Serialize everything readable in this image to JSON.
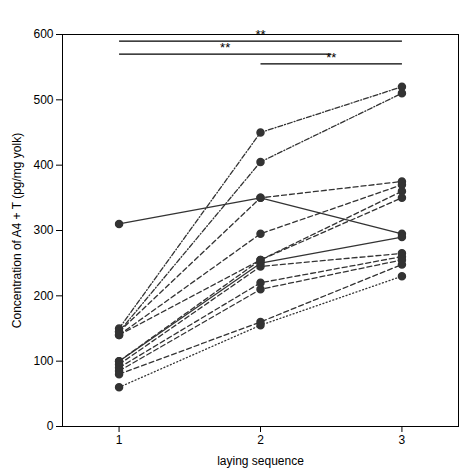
{
  "chart_data": {
    "type": "line",
    "xlabel": "laying sequence",
    "ylabel": "Concentration of A4 + T (pg/mg yolk)",
    "x": [
      1,
      2,
      3
    ],
    "series": [
      {
        "values": [
          310,
          350,
          295
        ],
        "line_style": "solid"
      },
      {
        "values": [
          150,
          450,
          520
        ],
        "line_style": "dashdot"
      },
      {
        "values": [
          145,
          405,
          510
        ],
        "line_style": "dashdot"
      },
      {
        "values": [
          145,
          350,
          375
        ],
        "line_style": "dashed"
      },
      {
        "values": [
          140,
          295,
          370
        ],
        "line_style": "dashed"
      },
      {
        "values": [
          140,
          255,
          360
        ],
        "line_style": "dashed"
      },
      {
        "values": [
          100,
          255,
          350
        ],
        "line_style": "dashed"
      },
      {
        "values": [
          100,
          250,
          290
        ],
        "line_style": "solid"
      },
      {
        "values": [
          95,
          245,
          265
        ],
        "line_style": "dashed"
      },
      {
        "values": [
          90,
          220,
          260
        ],
        "line_style": "dashed"
      },
      {
        "values": [
          85,
          210,
          255
        ],
        "line_style": "dashed"
      },
      {
        "values": [
          80,
          160,
          248
        ],
        "line_style": "dashed"
      },
      {
        "values": [
          60,
          155,
          230
        ],
        "line_style": "dotted"
      }
    ],
    "color": "#333333",
    "marker": "circle",
    "xlim": [
      0.6,
      3.4
    ],
    "ylim": [
      0,
      600
    ],
    "xticks": [
      1,
      2,
      3
    ],
    "yticks": [
      0,
      100,
      200,
      300,
      400,
      500,
      600
    ],
    "annotations": [
      {
        "x1": 1.0,
        "x2": 2.5,
        "y": 570,
        "label": "**",
        "label_x": 1.75
      },
      {
        "x1": 1.0,
        "x2": 3.0,
        "y": 590,
        "label": "**",
        "label_x": 2.0
      },
      {
        "x1": 2.0,
        "x2": 3.0,
        "y": 555,
        "label": "**",
        "label_x": 2.5
      }
    ]
  }
}
